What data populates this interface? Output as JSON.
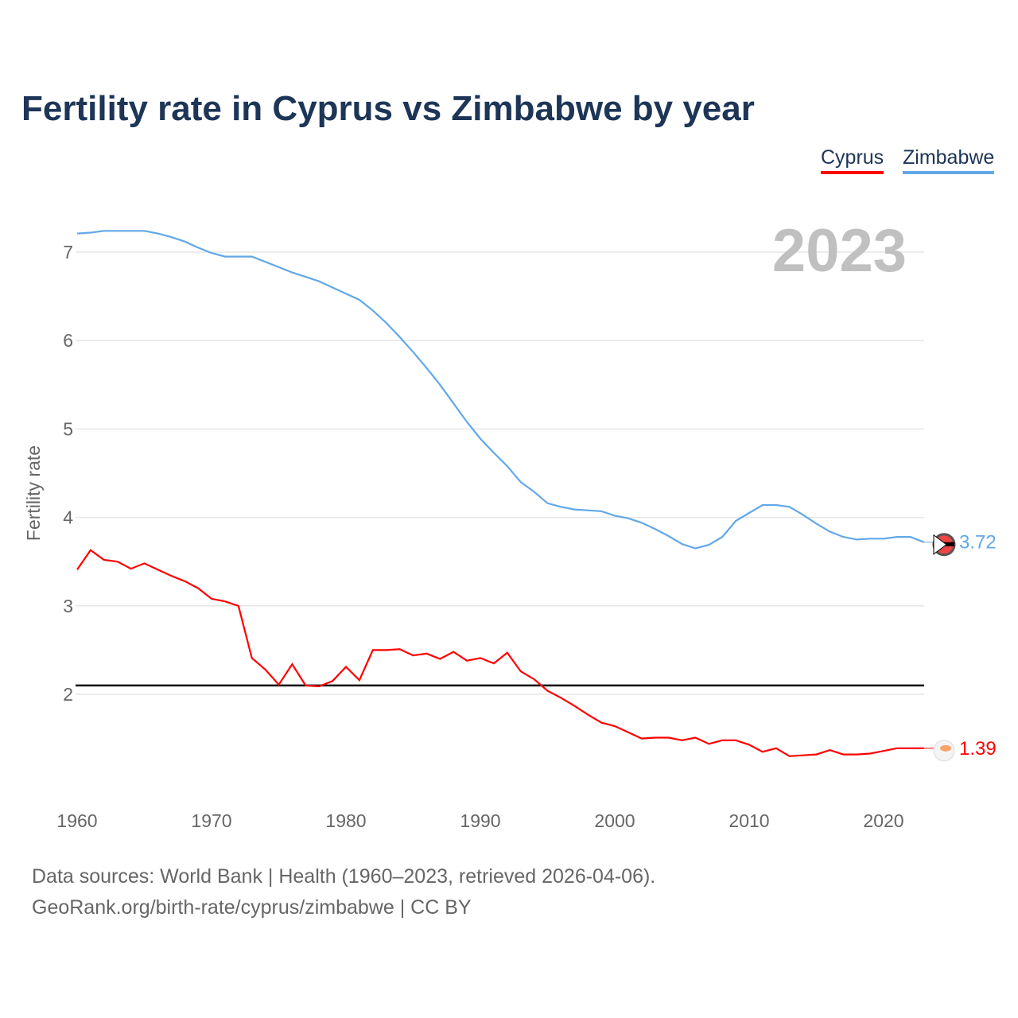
{
  "chart_data": {
    "type": "line",
    "title": "Fertility rate in Cyprus vs Zimbabwe by year",
    "xlabel": "",
    "ylabel": "Fertility rate",
    "xlim": [
      1960,
      2023
    ],
    "ylim": [
      1.0,
      7.5
    ],
    "xticks": [
      1960,
      1970,
      1980,
      1990,
      2000,
      2010,
      2020
    ],
    "yticks": [
      2,
      3,
      4,
      5,
      6,
      7
    ],
    "grid": true,
    "legend_position": "top-right",
    "year_label": "2023",
    "reference_line": 2.1,
    "series": [
      {
        "name": "Cyprus",
        "color": "#ff0000",
        "end_label": "1.39",
        "flag": "cyprus-flag",
        "x_start": 1960,
        "values": [
          3.41,
          3.63,
          3.52,
          3.5,
          3.42,
          3.48,
          3.41,
          3.34,
          3.28,
          3.2,
          3.08,
          3.05,
          3.0,
          2.41,
          2.28,
          2.11,
          2.34,
          2.1,
          2.09,
          2.15,
          2.31,
          2.16,
          2.5,
          2.5,
          2.51,
          2.44,
          2.46,
          2.4,
          2.48,
          2.38,
          2.41,
          2.35,
          2.47,
          2.26,
          2.17,
          2.04,
          1.96,
          1.87,
          1.77,
          1.68,
          1.64,
          1.57,
          1.5,
          1.51,
          1.51,
          1.48,
          1.51,
          1.44,
          1.48,
          1.48,
          1.43,
          1.35,
          1.39,
          1.3,
          1.31,
          1.32,
          1.37,
          1.32,
          1.32,
          1.33,
          1.36,
          1.39,
          1.39,
          1.39
        ]
      },
      {
        "name": "Zimbabwe",
        "color": "#62a8e8",
        "end_label": "3.72",
        "flag": "zimbabwe-flag",
        "x_start": 1960,
        "values": [
          7.21,
          7.22,
          7.24,
          7.24,
          7.24,
          7.24,
          7.21,
          7.17,
          7.12,
          7.05,
          6.99,
          6.95,
          6.95,
          6.95,
          6.89,
          6.83,
          6.77,
          6.72,
          6.67,
          6.6,
          6.53,
          6.46,
          6.34,
          6.2,
          6.04,
          5.87,
          5.69,
          5.5,
          5.29,
          5.08,
          4.89,
          4.73,
          4.58,
          4.4,
          4.29,
          4.16,
          4.12,
          4.09,
          4.08,
          4.07,
          4.02,
          3.99,
          3.94,
          3.87,
          3.79,
          3.7,
          3.65,
          3.69,
          3.78,
          3.96,
          4.05,
          4.14,
          4.14,
          4.12,
          4.03,
          3.93,
          3.84,
          3.78,
          3.75,
          3.76,
          3.76,
          3.78,
          3.78,
          3.72
        ]
      }
    ]
  },
  "footer": {
    "source": "Data sources: World Bank | Health (1960–2023, retrieved 2026-04-06).",
    "url": "GeoRank.org/birth-rate/cyprus/zimbabwe | CC BY"
  }
}
